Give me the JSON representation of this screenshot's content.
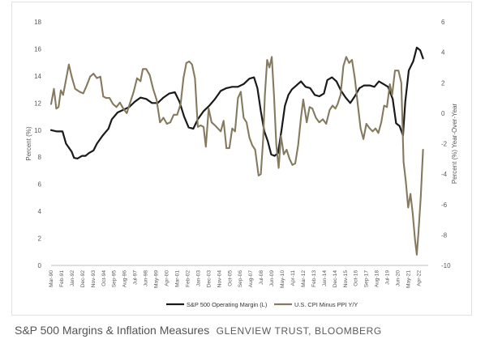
{
  "chart_data": {
    "type": "line",
    "title": "S&P 500 Margins & Inflation Measures",
    "source": "GLENVIEW TRUST, BLOOMBERG",
    "ylabel_left": "Percent (%)",
    "ylabel_right": "Percent (%) Year-Over-Year",
    "ylim_left": [
      0,
      18
    ],
    "ylim_right": [
      -10,
      6
    ],
    "yticks_left": [
      "0",
      "2",
      "4",
      "6",
      "8",
      "10",
      "12",
      "14",
      "16",
      "18"
    ],
    "yticks_right": [
      "-10",
      "-8",
      "-6",
      "-4",
      "-2",
      "0",
      "2",
      "4",
      "6"
    ],
    "x_tick_labels": [
      "Mar-90",
      "Feb-91",
      "Jan-92",
      "Dec-92",
      "Nov-93",
      "Oct-94",
      "Sep-95",
      "Aug-96",
      "Jul-97",
      "Jun-98",
      "May-99",
      "Apr-00",
      "Mar-01",
      "Feb-02",
      "Jan-03",
      "Dec-03",
      "Nov-04",
      "Oct-05",
      "Sep-06",
      "Aug-07",
      "Jul-08",
      "Jun-09",
      "May-10",
      "Apr-11",
      "Mar-12",
      "Feb-13",
      "Jan-14",
      "Dec-14",
      "Nov-15",
      "Oct-16",
      "Sep-17",
      "Aug-18",
      "Jul-19",
      "Jun-20",
      "May-21",
      "Apr-22"
    ],
    "x_range": [
      1990.0,
      2022.9
    ],
    "grid": false,
    "legend_position": "bottom",
    "series": [
      {
        "name": "S&P 500 Operating Margin (L)",
        "axis": "left",
        "color": "#1a1a1a",
        "points": [
          [
            1990.0,
            10.0
          ],
          [
            1990.5,
            9.9
          ],
          [
            1991.0,
            9.9
          ],
          [
            1991.3,
            9.0
          ],
          [
            1991.8,
            8.4
          ],
          [
            1992.0,
            7.95
          ],
          [
            1992.3,
            7.9
          ],
          [
            1992.7,
            8.1
          ],
          [
            1993.0,
            8.1
          ],
          [
            1993.3,
            8.3
          ],
          [
            1993.7,
            8.5
          ],
          [
            1994.0,
            9.0
          ],
          [
            1994.5,
            9.6
          ],
          [
            1995.0,
            10.1
          ],
          [
            1995.3,
            10.8
          ],
          [
            1995.8,
            11.3
          ],
          [
            1996.3,
            11.5
          ],
          [
            1996.8,
            11.7
          ],
          [
            1997.3,
            12.1
          ],
          [
            1997.8,
            12.4
          ],
          [
            1998.3,
            12.3
          ],
          [
            1998.8,
            12.0
          ],
          [
            1999.3,
            12.0
          ],
          [
            1999.8,
            12.4
          ],
          [
            2000.3,
            12.7
          ],
          [
            2000.8,
            12.8
          ],
          [
            2001.2,
            12.1
          ],
          [
            2001.6,
            11.0
          ],
          [
            2002.0,
            10.2
          ],
          [
            2002.4,
            10.1
          ],
          [
            2002.8,
            10.8
          ],
          [
            2003.3,
            11.4
          ],
          [
            2003.8,
            11.8
          ],
          [
            2004.3,
            12.3
          ],
          [
            2004.8,
            12.9
          ],
          [
            2005.3,
            13.1
          ],
          [
            2005.8,
            13.2
          ],
          [
            2006.3,
            13.2
          ],
          [
            2006.8,
            13.4
          ],
          [
            2007.3,
            13.8
          ],
          [
            2007.7,
            13.9
          ],
          [
            2008.0,
            13.1
          ],
          [
            2008.3,
            11.4
          ],
          [
            2008.6,
            9.9
          ],
          [
            2008.9,
            9.2
          ],
          [
            2009.2,
            8.2
          ],
          [
            2009.5,
            8.1
          ],
          [
            2009.8,
            8.3
          ],
          [
            2010.1,
            10.0
          ],
          [
            2010.4,
            11.8
          ],
          [
            2010.7,
            12.6
          ],
          [
            2011.0,
            13.0
          ],
          [
            2011.4,
            13.3
          ],
          [
            2011.8,
            13.6
          ],
          [
            2012.2,
            13.2
          ],
          [
            2012.6,
            13.1
          ],
          [
            2013.0,
            12.6
          ],
          [
            2013.4,
            12.5
          ],
          [
            2013.8,
            12.7
          ],
          [
            2014.1,
            13.7
          ],
          [
            2014.5,
            13.9
          ],
          [
            2014.9,
            13.6
          ],
          [
            2015.3,
            12.9
          ],
          [
            2015.7,
            12.4
          ],
          [
            2016.1,
            12.0
          ],
          [
            2016.5,
            12.5
          ],
          [
            2016.9,
            13.1
          ],
          [
            2017.3,
            13.3
          ],
          [
            2017.8,
            13.3
          ],
          [
            2018.2,
            13.2
          ],
          [
            2018.6,
            13.6
          ],
          [
            2019.0,
            13.4
          ],
          [
            2019.4,
            13.2
          ],
          [
            2019.8,
            12.3
          ],
          [
            2020.1,
            10.5
          ],
          [
            2020.4,
            10.3
          ],
          [
            2020.7,
            9.6
          ],
          [
            2020.9,
            12.1
          ],
          [
            2021.2,
            14.4
          ],
          [
            2021.6,
            15.1
          ],
          [
            2021.9,
            16.1
          ],
          [
            2022.2,
            15.9
          ],
          [
            2022.45,
            15.3
          ]
        ]
      },
      {
        "name": "U.S. CPI Minus PPI Y/Y",
        "axis": "right",
        "color": "#857a5f",
        "points": [
          [
            1990.0,
            0.6
          ],
          [
            1990.25,
            1.6
          ],
          [
            1990.45,
            0.3
          ],
          [
            1990.65,
            0.4
          ],
          [
            1990.85,
            1.5
          ],
          [
            1991.05,
            1.2
          ],
          [
            1991.3,
            2.2
          ],
          [
            1991.55,
            3.2
          ],
          [
            1991.8,
            2.4
          ],
          [
            1992.1,
            1.6
          ],
          [
            1992.5,
            1.4
          ],
          [
            1992.8,
            1.3
          ],
          [
            1993.1,
            1.8
          ],
          [
            1993.4,
            2.4
          ],
          [
            1993.7,
            2.6
          ],
          [
            1994.0,
            2.3
          ],
          [
            1994.3,
            2.4
          ],
          [
            1994.55,
            1.1
          ],
          [
            1994.8,
            1.0
          ],
          [
            1995.1,
            1.0
          ],
          [
            1995.4,
            0.6
          ],
          [
            1995.7,
            0.4
          ],
          [
            1996.0,
            0.7
          ],
          [
            1996.3,
            0.3
          ],
          [
            1996.6,
            0.0
          ],
          [
            1996.9,
            0.7
          ],
          [
            1997.2,
            1.4
          ],
          [
            1997.5,
            2.3
          ],
          [
            1997.8,
            2.1
          ],
          [
            1998.0,
            2.9
          ],
          [
            1998.3,
            2.9
          ],
          [
            1998.6,
            2.5
          ],
          [
            1998.9,
            1.6
          ],
          [
            1999.2,
            0.9
          ],
          [
            1999.5,
            -0.6
          ],
          [
            1999.8,
            -0.3
          ],
          [
            2000.1,
            -0.7
          ],
          [
            2000.4,
            -0.6
          ],
          [
            2000.7,
            -0.1
          ],
          [
            2001.0,
            -0.1
          ],
          [
            2001.3,
            0.6
          ],
          [
            2001.55,
            2.3
          ],
          [
            2001.8,
            3.3
          ],
          [
            2002.05,
            3.4
          ],
          [
            2002.3,
            3.2
          ],
          [
            2002.55,
            2.3
          ],
          [
            2002.8,
            -0.9
          ],
          [
            2003.05,
            -0.8
          ],
          [
            2003.3,
            -0.9
          ],
          [
            2003.5,
            -2.2
          ],
          [
            2003.75,
            0.3
          ],
          [
            2004.0,
            -0.6
          ],
          [
            2004.3,
            -0.8
          ],
          [
            2004.55,
            -1.0
          ],
          [
            2004.8,
            -1.2
          ],
          [
            2005.05,
            -0.5
          ],
          [
            2005.3,
            -2.3
          ],
          [
            2005.55,
            -2.3
          ],
          [
            2005.8,
            -1.0
          ],
          [
            2006.05,
            -1.2
          ],
          [
            2006.3,
            1.0
          ],
          [
            2006.55,
            1.4
          ],
          [
            2006.8,
            -0.3
          ],
          [
            2007.05,
            -0.6
          ],
          [
            2007.3,
            -1.6
          ],
          [
            2007.55,
            -2.1
          ],
          [
            2007.8,
            -2.4
          ],
          [
            2008.1,
            -4.1
          ],
          [
            2008.3,
            -4.0
          ],
          [
            2008.5,
            -1.7
          ],
          [
            2008.65,
            1.2
          ],
          [
            2008.85,
            3.5
          ],
          [
            2009.05,
            3.0
          ],
          [
            2009.25,
            3.7
          ],
          [
            2009.45,
            1.1
          ],
          [
            2009.65,
            -2.1
          ],
          [
            2009.85,
            -3.6
          ],
          [
            2010.05,
            -1.5
          ],
          [
            2010.3,
            -2.7
          ],
          [
            2010.55,
            -2.4
          ],
          [
            2010.8,
            -3.0
          ],
          [
            2011.05,
            -3.4
          ],
          [
            2011.3,
            -3.3
          ],
          [
            2011.55,
            -2.1
          ],
          [
            2011.8,
            -0.3
          ],
          [
            2012.0,
            0.9
          ],
          [
            2012.3,
            -0.6
          ],
          [
            2012.55,
            0.4
          ],
          [
            2012.8,
            0.3
          ],
          [
            2013.1,
            -0.3
          ],
          [
            2013.4,
            -0.6
          ],
          [
            2013.7,
            -0.4
          ],
          [
            2014.0,
            -0.7
          ],
          [
            2014.3,
            0.2
          ],
          [
            2014.55,
            0.5
          ],
          [
            2014.8,
            0.3
          ],
          [
            2015.0,
            0.6
          ],
          [
            2015.25,
            1.2
          ],
          [
            2015.5,
            3.1
          ],
          [
            2015.75,
            3.7
          ],
          [
            2016.0,
            3.3
          ],
          [
            2016.25,
            3.5
          ],
          [
            2016.5,
            2.3
          ],
          [
            2016.75,
            0.6
          ],
          [
            2017.0,
            -1.0
          ],
          [
            2017.25,
            -1.7
          ],
          [
            2017.5,
            -0.7
          ],
          [
            2017.8,
            -1.0
          ],
          [
            2018.05,
            -1.2
          ],
          [
            2018.3,
            -1.0
          ],
          [
            2018.55,
            -1.3
          ],
          [
            2018.8,
            -0.6
          ],
          [
            2019.05,
            0.5
          ],
          [
            2019.3,
            0.4
          ],
          [
            2019.55,
            1.9
          ],
          [
            2019.75,
            1.2
          ],
          [
            2020.0,
            2.8
          ],
          [
            2020.3,
            2.8
          ],
          [
            2020.55,
            2.0
          ],
          [
            2020.75,
            -3.2
          ],
          [
            2020.95,
            -4.5
          ],
          [
            2021.15,
            -6.2
          ],
          [
            2021.35,
            -5.3
          ],
          [
            2021.55,
            -6.6
          ],
          [
            2021.75,
            -8.3
          ],
          [
            2021.9,
            -9.3
          ],
          [
            2022.05,
            -7.8
          ],
          [
            2022.25,
            -5.5
          ],
          [
            2022.45,
            -2.4
          ]
        ]
      }
    ]
  }
}
